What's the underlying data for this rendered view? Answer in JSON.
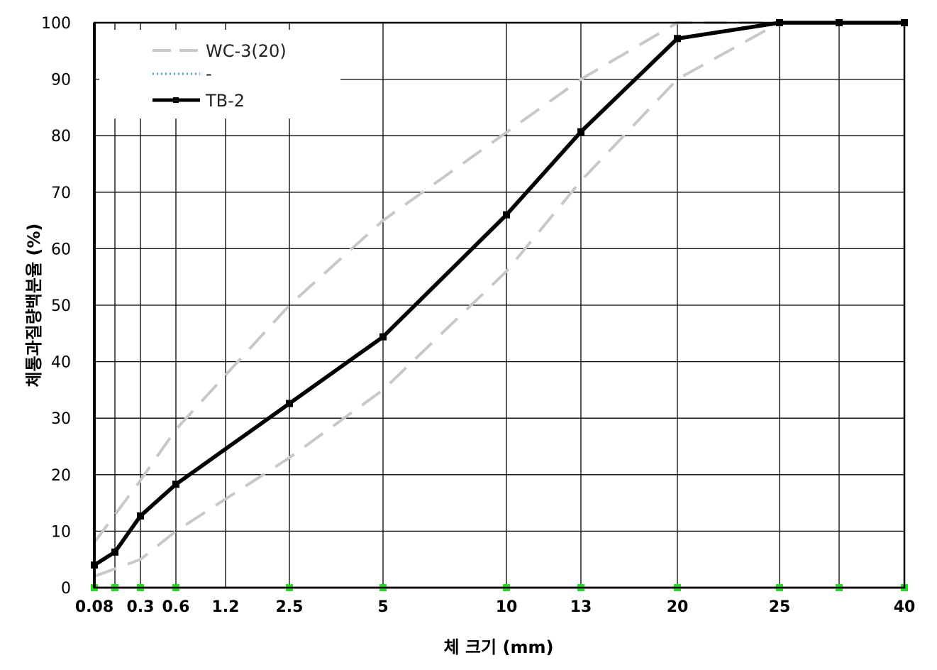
{
  "chart_data": {
    "type": "line",
    "title": "",
    "xlabel": "체 크기 (mm)",
    "ylabel": "체통과질량백분율 (%)",
    "ylim": [
      0,
      100
    ],
    "yticks": [
      "0",
      "10",
      "20",
      "30",
      "40",
      "50",
      "60",
      "70",
      "80",
      "90",
      "100"
    ],
    "categories": [
      "0.08",
      "0.15",
      "0.3",
      "0.6",
      "1.2",
      "2.5",
      "5",
      "10",
      "13",
      "20",
      "25",
      "30",
      "40"
    ],
    "xtick_labels": [
      "0.08",
      "",
      "0.3",
      "0.6",
      "1.2",
      "2.5",
      "5",
      "10",
      "13",
      "20",
      "25",
      "",
      "40"
    ],
    "grid": true,
    "legend_position": "top-left",
    "series": [
      {
        "name": "WC-3(20)",
        "style": "dashed",
        "color": "#c8c8c8",
        "role": "upper-limit",
        "x": [
          "0.08",
          "0.3",
          "0.6",
          "2.5",
          "5",
          "13",
          "20",
          "25",
          "40"
        ],
        "values": [
          8,
          19,
          28,
          50,
          65,
          90,
          100,
          100,
          100
        ]
      },
      {
        "name": "",
        "style": "dashed",
        "color": "#c8c8c8",
        "role": "lower-limit",
        "x": [
          "0.08",
          "0.3",
          "0.6",
          "2.5",
          "5",
          "10",
          "13",
          "20",
          "25",
          "40"
        ],
        "values": [
          2,
          5,
          10,
          23,
          35,
          56,
          72,
          90,
          100,
          100
        ]
      },
      {
        "name": "-",
        "style": "dotted",
        "color": "#5b9bd5",
        "x": [
          "0.08",
          "0.15",
          "0.3",
          "0.6",
          "1.2",
          "2.5",
          "5",
          "10",
          "13",
          "20",
          "25",
          "30",
          "40"
        ],
        "values": [
          0,
          0,
          0,
          0,
          0,
          0,
          0,
          0,
          0,
          0,
          0,
          0,
          0
        ]
      },
      {
        "name": "TB-2",
        "style": "solid",
        "color": "#000000",
        "x": [
          "0.08",
          "0.15",
          "0.3",
          "0.6",
          "2.5",
          "5",
          "10",
          "13",
          "20",
          "25",
          "30",
          "40"
        ],
        "values": [
          4,
          6.3,
          12.7,
          18.3,
          32.6,
          44.4,
          66,
          80.7,
          97.2,
          100,
          100,
          100
        ]
      },
      {
        "name": "",
        "style": "solid",
        "color": "#7a2020",
        "marker_color": "#22dd22",
        "x": [
          "0.08",
          "0.15",
          "0.3",
          "0.6",
          "2.5",
          "5",
          "10",
          "13",
          "20",
          "25",
          "30",
          "40"
        ],
        "values": [
          0,
          0,
          0,
          0,
          0,
          0,
          0,
          0,
          0,
          0,
          0,
          0
        ]
      }
    ]
  }
}
